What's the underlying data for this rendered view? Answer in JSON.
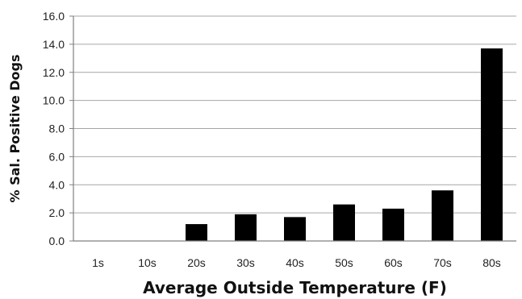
{
  "chart_data": {
    "type": "bar",
    "categories": [
      "1s",
      "10s",
      "20s",
      "30s",
      "40s",
      "50s",
      "60s",
      "70s",
      "80s"
    ],
    "values": [
      0,
      0,
      1.2,
      1.9,
      1.7,
      2.6,
      2.3,
      3.6,
      13.7
    ],
    "xlabel": "Average Outside Temperature (F)",
    "ylabel": "% Sal. Positive Dogs",
    "ylim": [
      0,
      16
    ],
    "yticks": [
      "0.0",
      "2.0",
      "4.0",
      "6.0",
      "8.0",
      "10.0",
      "12.0",
      "14.0",
      "16.0"
    ],
    "grid": true,
    "bar_color": "#000000",
    "grid_color": "#a6a6a6"
  }
}
